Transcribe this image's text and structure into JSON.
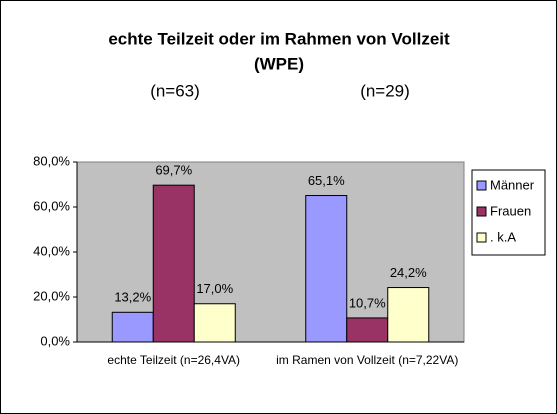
{
  "chart_data": {
    "type": "bar",
    "title": [
      "echte Teilzeit oder im Rahmen von Vollzeit",
      "(WPE)"
    ],
    "annotations": [
      "(n=63)",
      "(n=29)"
    ],
    "categories": [
      "echte Teilzeit (n=26,4VA)",
      "im Ramen von Vollzeit (n=7,22VA)"
    ],
    "series": [
      {
        "name": "Männer",
        "color": "#9999ff",
        "values": [
          13.2,
          65.1
        ],
        "value_labels": [
          "13,2%",
          "65,1%"
        ]
      },
      {
        "name": "Frauen",
        "color": "#993366",
        "values": [
          69.7,
          10.7
        ],
        "value_labels": [
          "69,7%",
          "10,7%"
        ]
      },
      {
        "name": ". k.A",
        "color": "#ffffcc",
        "values": [
          17.0,
          24.2
        ],
        "value_labels": [
          "17,0%",
          "24,2%"
        ]
      }
    ],
    "ylim": [
      0,
      80
    ],
    "yticks": [
      {
        "value": 0,
        "label": "0,0%"
      },
      {
        "value": 20,
        "label": "20,0%"
      },
      {
        "value": 40,
        "label": "40,0%"
      },
      {
        "value": 60,
        "label": "60,0%"
      },
      {
        "value": 80,
        "label": "80,0%"
      }
    ],
    "grid": false,
    "legend": "right",
    "plot_background": "#c0c0c0"
  }
}
